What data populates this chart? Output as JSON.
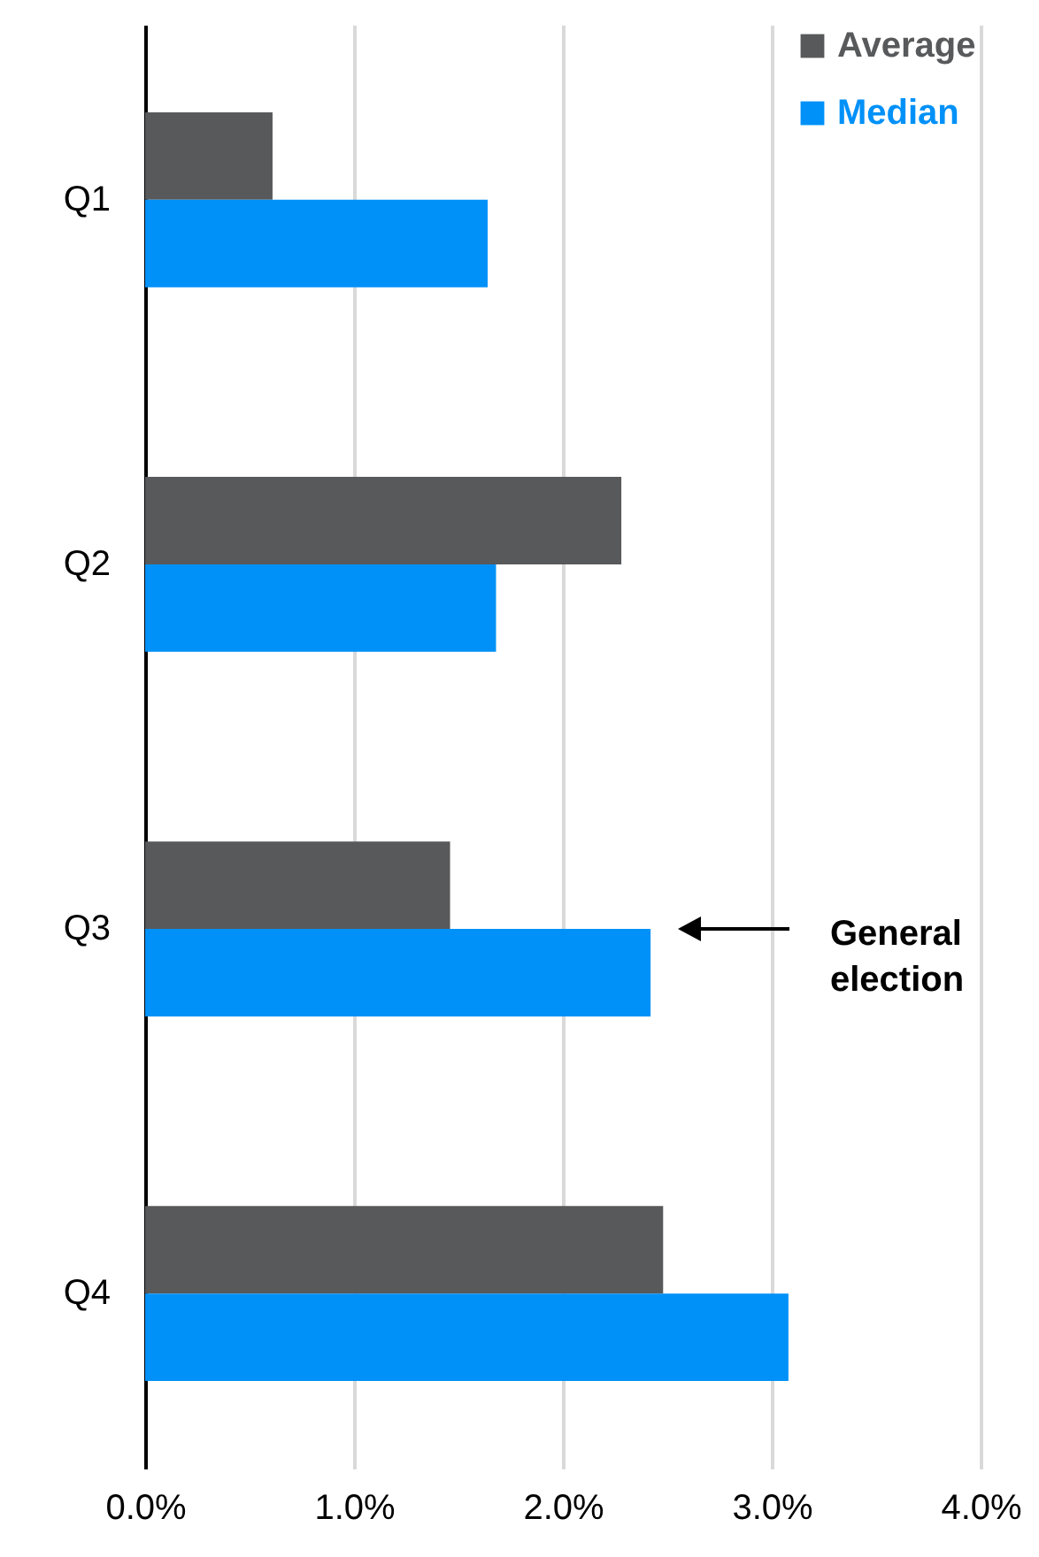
{
  "chart_data": {
    "type": "bar",
    "orientation": "horizontal",
    "categories": [
      "Q1",
      "Q2",
      "Q3",
      "Q4"
    ],
    "series": [
      {
        "name": "Average",
        "color": "#58595b",
        "values": [
          0.61,
          2.28,
          1.46,
          2.48
        ]
      },
      {
        "name": "Median",
        "color": "#0091f8",
        "values": [
          1.64,
          1.68,
          2.42,
          3.08
        ]
      }
    ],
    "xlim": [
      0,
      4
    ],
    "xticks": [
      {
        "value": 0,
        "label": "0.0%"
      },
      {
        "value": 1,
        "label": "1.0%"
      },
      {
        "value": 2,
        "label": "2.0%"
      },
      {
        "value": 3,
        "label": "3.0%"
      },
      {
        "value": 4,
        "label": "4.0%"
      }
    ],
    "grid": "x",
    "legend": "top right",
    "annotations": [
      "General election"
    ]
  }
}
